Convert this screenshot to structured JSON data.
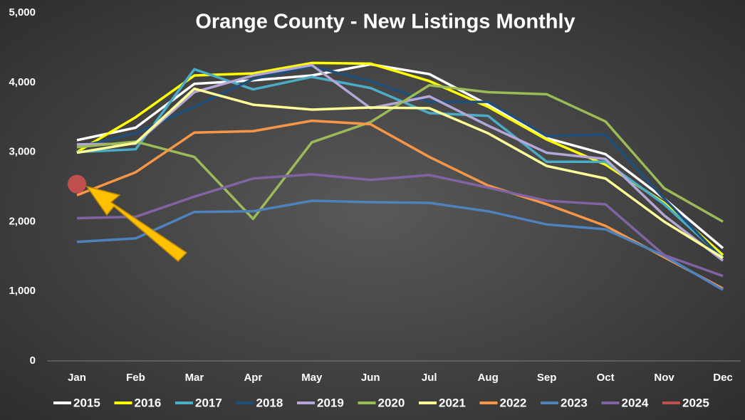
{
  "chart_data": {
    "type": "line",
    "title": "Orange County - New Listings Monthly",
    "categories": [
      "Jan",
      "Feb",
      "Mar",
      "Apr",
      "May",
      "Jun",
      "Jul",
      "Aug",
      "Sep",
      "Oct",
      "Nov",
      "Dec"
    ],
    "ylim": [
      0,
      5000
    ],
    "yticks": [
      0,
      {
        "value": 1000,
        "label": "1,000"
      },
      {
        "value": 2000,
        "label": "2,000"
      },
      {
        "value": 3000,
        "label": "3,000"
      },
      {
        "value": 4000,
        "label": "4,000"
      },
      {
        "value": 5000,
        "label": "5,000"
      }
    ],
    "grid": false,
    "legend": "bottom",
    "series": [
      {
        "name": "2015",
        "color": "#ffffff",
        "values": [
          3170,
          3350,
          3980,
          4030,
          4100,
          4260,
          4120,
          3680,
          3200,
          2970,
          2330,
          1620
        ]
      },
      {
        "name": "2016",
        "color": "#ffff00",
        "values": [
          3000,
          3500,
          4100,
          4130,
          4280,
          4270,
          4020,
          3650,
          3180,
          2820,
          2270,
          1520
        ]
      },
      {
        "name": "2017",
        "color": "#4bacc6",
        "values": [
          3000,
          3040,
          4190,
          3900,
          4080,
          3920,
          3560,
          3520,
          2860,
          2860,
          2250,
          1480
        ]
      },
      {
        "name": "2018",
        "color": "#1f4e79",
        "values": [
          3070,
          3270,
          3650,
          4050,
          4230,
          4020,
          3720,
          3720,
          3230,
          3250,
          2330,
          1460
        ]
      },
      {
        "name": "2019",
        "color": "#b4a7d6",
        "values": [
          3110,
          3120,
          3860,
          4100,
          4250,
          3630,
          3800,
          3380,
          2990,
          2900,
          2090,
          1440
        ]
      },
      {
        "name": "2020",
        "color": "#9bbb59",
        "values": [
          3070,
          3150,
          2930,
          2040,
          3140,
          3430,
          3960,
          3860,
          3830,
          3440,
          2480,
          2000
        ]
      },
      {
        "name": "2021",
        "color": "#ffff99",
        "values": [
          2990,
          3130,
          3910,
          3680,
          3610,
          3640,
          3630,
          3270,
          2800,
          2620,
          2000,
          1480
        ]
      },
      {
        "name": "2022",
        "color": "#f79646",
        "values": [
          2380,
          2710,
          3280,
          3300,
          3450,
          3400,
          2930,
          2520,
          2250,
          1940,
          1490,
          1040
        ]
      },
      {
        "name": "2023",
        "color": "#4f81bd",
        "values": [
          1710,
          1760,
          2140,
          2150,
          2300,
          2280,
          2270,
          2150,
          1960,
          1890,
          1510,
          1020
        ]
      },
      {
        "name": "2024",
        "color": "#8064a2",
        "values": [
          2050,
          2070,
          2360,
          2620,
          2680,
          2600,
          2670,
          2490,
          2300,
          2250,
          1520,
          1220
        ]
      },
      {
        "name": "2025",
        "color": "#c0504d",
        "values": [
          2540,
          null,
          null,
          null,
          null,
          null,
          null,
          null,
          null,
          null,
          null,
          null
        ]
      }
    ]
  }
}
